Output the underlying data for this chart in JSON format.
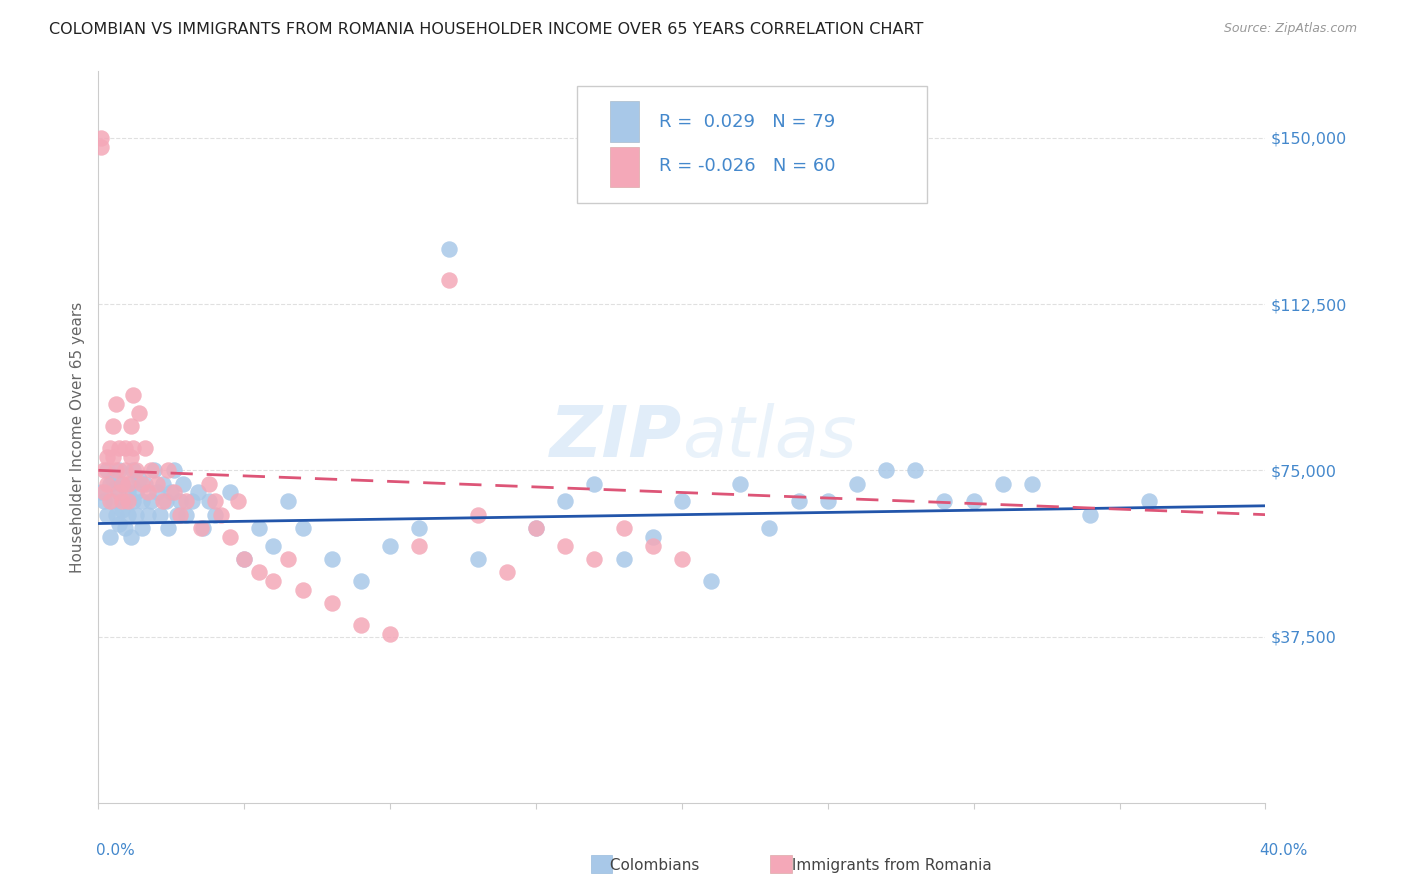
{
  "title": "COLOMBIAN VS IMMIGRANTS FROM ROMANIA HOUSEHOLDER INCOME OVER 65 YEARS CORRELATION CHART",
  "source": "Source: ZipAtlas.com",
  "ylabel": "Householder Income Over 65 years",
  "ytick_labels": [
    "$150,000",
    "$112,500",
    "$75,000",
    "$37,500"
  ],
  "ytick_values": [
    150000,
    112500,
    75000,
    37500
  ],
  "ymin": 0,
  "ymax": 165000,
  "xmin": 0.0,
  "xmax": 0.4,
  "legend_label_1": "Colombians",
  "legend_label_2": "Immigrants from Romania",
  "r1": 0.029,
  "n1": 79,
  "r2": -0.026,
  "n2": 60,
  "color_blue": "#A8C8E8",
  "color_pink": "#F4A8B8",
  "color_trend_blue": "#2255AA",
  "color_trend_pink": "#DD5577",
  "color_axis": "#CCCCCC",
  "color_grid": "#DDDDDD",
  "color_title": "#222222",
  "color_source": "#999999",
  "color_ytick": "#4488CC",
  "watermark_zip": "ZIP",
  "watermark_atlas": "atlas",
  "colombians_x": [
    0.001,
    0.002,
    0.003,
    0.003,
    0.004,
    0.004,
    0.005,
    0.005,
    0.006,
    0.006,
    0.007,
    0.007,
    0.008,
    0.008,
    0.009,
    0.009,
    0.01,
    0.01,
    0.011,
    0.011,
    0.012,
    0.012,
    0.013,
    0.013,
    0.014,
    0.015,
    0.015,
    0.016,
    0.017,
    0.018,
    0.019,
    0.02,
    0.021,
    0.022,
    0.023,
    0.024,
    0.025,
    0.026,
    0.027,
    0.028,
    0.029,
    0.03,
    0.032,
    0.034,
    0.036,
    0.038,
    0.04,
    0.045,
    0.05,
    0.055,
    0.06,
    0.065,
    0.07,
    0.08,
    0.09,
    0.1,
    0.11,
    0.12,
    0.13,
    0.15,
    0.16,
    0.17,
    0.18,
    0.19,
    0.2,
    0.21,
    0.22,
    0.24,
    0.26,
    0.28,
    0.3,
    0.32,
    0.34,
    0.36,
    0.27,
    0.25,
    0.23,
    0.29,
    0.31
  ],
  "colombians_y": [
    70000,
    68000,
    75000,
    65000,
    72000,
    60000,
    73000,
    68000,
    65000,
    71000,
    63000,
    75000,
    66000,
    72000,
    68000,
    62000,
    70000,
    65000,
    72000,
    60000,
    68000,
    75000,
    65000,
    70000,
    73000,
    68000,
    62000,
    72000,
    65000,
    68000,
    75000,
    70000,
    65000,
    72000,
    68000,
    62000,
    70000,
    75000,
    65000,
    68000,
    72000,
    65000,
    68000,
    70000,
    62000,
    68000,
    65000,
    70000,
    55000,
    62000,
    58000,
    68000,
    62000,
    55000,
    50000,
    58000,
    62000,
    125000,
    55000,
    62000,
    68000,
    72000,
    55000,
    60000,
    68000,
    50000,
    72000,
    68000,
    72000,
    75000,
    68000,
    72000,
    65000,
    68000,
    75000,
    68000,
    62000,
    68000,
    72000
  ],
  "romania_x": [
    0.001,
    0.001,
    0.002,
    0.002,
    0.003,
    0.003,
    0.004,
    0.004,
    0.005,
    0.005,
    0.006,
    0.006,
    0.007,
    0.007,
    0.008,
    0.008,
    0.009,
    0.009,
    0.01,
    0.01,
    0.011,
    0.011,
    0.012,
    0.012,
    0.013,
    0.014,
    0.015,
    0.016,
    0.017,
    0.018,
    0.02,
    0.022,
    0.024,
    0.026,
    0.028,
    0.03,
    0.035,
    0.038,
    0.04,
    0.042,
    0.045,
    0.048,
    0.05,
    0.055,
    0.06,
    0.065,
    0.07,
    0.08,
    0.09,
    0.1,
    0.11,
    0.12,
    0.13,
    0.14,
    0.15,
    0.16,
    0.17,
    0.18,
    0.19,
    0.2
  ],
  "romania_y": [
    150000,
    148000,
    75000,
    70000,
    78000,
    72000,
    68000,
    80000,
    85000,
    78000,
    90000,
    75000,
    70000,
    80000,
    72000,
    68000,
    75000,
    80000,
    72000,
    68000,
    85000,
    78000,
    92000,
    80000,
    75000,
    88000,
    72000,
    80000,
    70000,
    75000,
    72000,
    68000,
    75000,
    70000,
    65000,
    68000,
    62000,
    72000,
    68000,
    65000,
    60000,
    68000,
    55000,
    52000,
    50000,
    55000,
    48000,
    45000,
    40000,
    38000,
    58000,
    118000,
    65000,
    52000,
    62000,
    58000,
    55000,
    62000,
    58000,
    55000
  ]
}
